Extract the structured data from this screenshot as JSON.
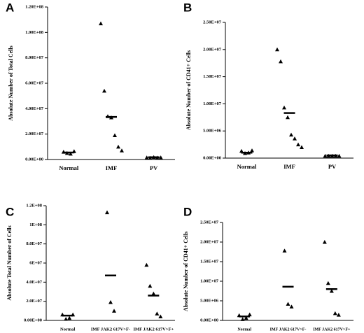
{
  "chart_data": [
    {
      "type": "dot",
      "label": "A",
      "y_label": "Absolute Number of Total Cells",
      "categories": [
        "Normal",
        "IMF",
        "PV"
      ],
      "groups": [
        [
          6000000,
          5000000,
          4500000,
          6500000
        ],
        [
          107000000,
          54000000,
          34000000,
          33000000,
          19000000,
          10000000,
          7000000
        ],
        [
          1500000,
          1200000,
          1800000,
          1400000,
          1600000
        ]
      ],
      "medians": [
        5500000,
        33500000,
        1800000
      ],
      "color": "#000000",
      "ylim": [
        0,
        120000000
      ],
      "yticks": [
        {
          "value": 0,
          "label": "0.00E+00"
        },
        {
          "value": 20000000,
          "label": "2.00E+07"
        },
        {
          "value": 40000000,
          "label": "4.00E+07"
        },
        {
          "value": 60000000,
          "label": "6.00E+07"
        },
        {
          "value": 80000000,
          "label": "8.00E+07"
        },
        {
          "value": 100000000,
          "label": "1.00E+08"
        },
        {
          "value": 120000000,
          "label": "1.20E+08"
        }
      ]
    },
    {
      "type": "dot",
      "label": "B",
      "y_label": "Absolute Number of CD41+ Cells",
      "categories": [
        "Normal",
        "IMF",
        "PV"
      ],
      "groups": [
        [
          1300000,
          900000,
          1000000,
          1400000
        ],
        [
          20000000,
          17800000,
          9300000,
          7500000,
          4300000,
          3600000,
          2500000,
          2000000
        ],
        [
          400000,
          400000,
          400000,
          400000,
          400000
        ]
      ],
      "medians": [
        1000000,
        8300000,
        500000
      ],
      "color": "#000000",
      "ylim": [
        0,
        25000000
      ],
      "yticks": [
        {
          "value": 0,
          "label": "0.00E+00"
        },
        {
          "value": 5000000,
          "label": "5.00E+06"
        },
        {
          "value": 10000000,
          "label": "1.00E+07"
        },
        {
          "value": 15000000,
          "label": "1.50E+07"
        },
        {
          "value": 20000000,
          "label": "2.00E+07"
        },
        {
          "value": 25000000,
          "label": "2.50E+07"
        }
      ]
    },
    {
      "type": "dot",
      "label": "C",
      "y_label": "Absolute Total Number of Cells",
      "categories": [
        "Normal",
        "IMF JAK2 617V>F-",
        "IMF JAK2 617V>F+"
      ],
      "groups": [
        [
          6000000,
          1500000,
          2500000,
          6000000
        ],
        [
          113000000,
          19000000,
          10000000
        ],
        [
          58000000,
          36000000,
          28000000,
          7000000,
          4000000
        ]
      ],
      "medians": [
        5000000,
        47000000,
        26000000
      ],
      "color": "#000000",
      "ylim": [
        0,
        120000000
      ],
      "yticks": [
        {
          "value": 0,
          "label": "0.00E+00"
        },
        {
          "value": 20000000,
          "label": "2.0E+07"
        },
        {
          "value": 40000000,
          "label": "4.0E+07"
        },
        {
          "value": 60000000,
          "label": "6E+07"
        },
        {
          "value": 80000000,
          "label": "8.0E+07"
        },
        {
          "value": 100000000,
          "label": "1E+08"
        },
        {
          "value": 120000000,
          "label": "1.2E+08"
        }
      ]
    },
    {
      "type": "dot",
      "label": "D",
      "y_label": "Absolute Number of CD41+ Cells",
      "categories": [
        "Normal",
        "IMF JAK2 617V>F-",
        "IMF JAK2 617V>F+"
      ],
      "groups": [
        [
          1300000,
          300000,
          600000,
          1500000
        ],
        [
          17800000,
          4200000,
          3500000
        ],
        [
          20000000,
          9500000,
          7500000,
          1800000,
          1400000
        ]
      ],
      "medians": [
        1000000,
        8600000,
        8000000
      ],
      "color": "#000000",
      "ylim": [
        0,
        25000000
      ],
      "yticks": [
        {
          "value": 0,
          "label": "0.00E+00"
        },
        {
          "value": 5000000,
          "label": "5.00E+06"
        },
        {
          "value": 10000000,
          "label": "1.00E+07"
        },
        {
          "value": 15000000,
          "label": "1.50E+07"
        },
        {
          "value": 20000000,
          "label": "2.00E+07"
        },
        {
          "value": 25000000,
          "label": "2.50E+07"
        }
      ]
    }
  ]
}
